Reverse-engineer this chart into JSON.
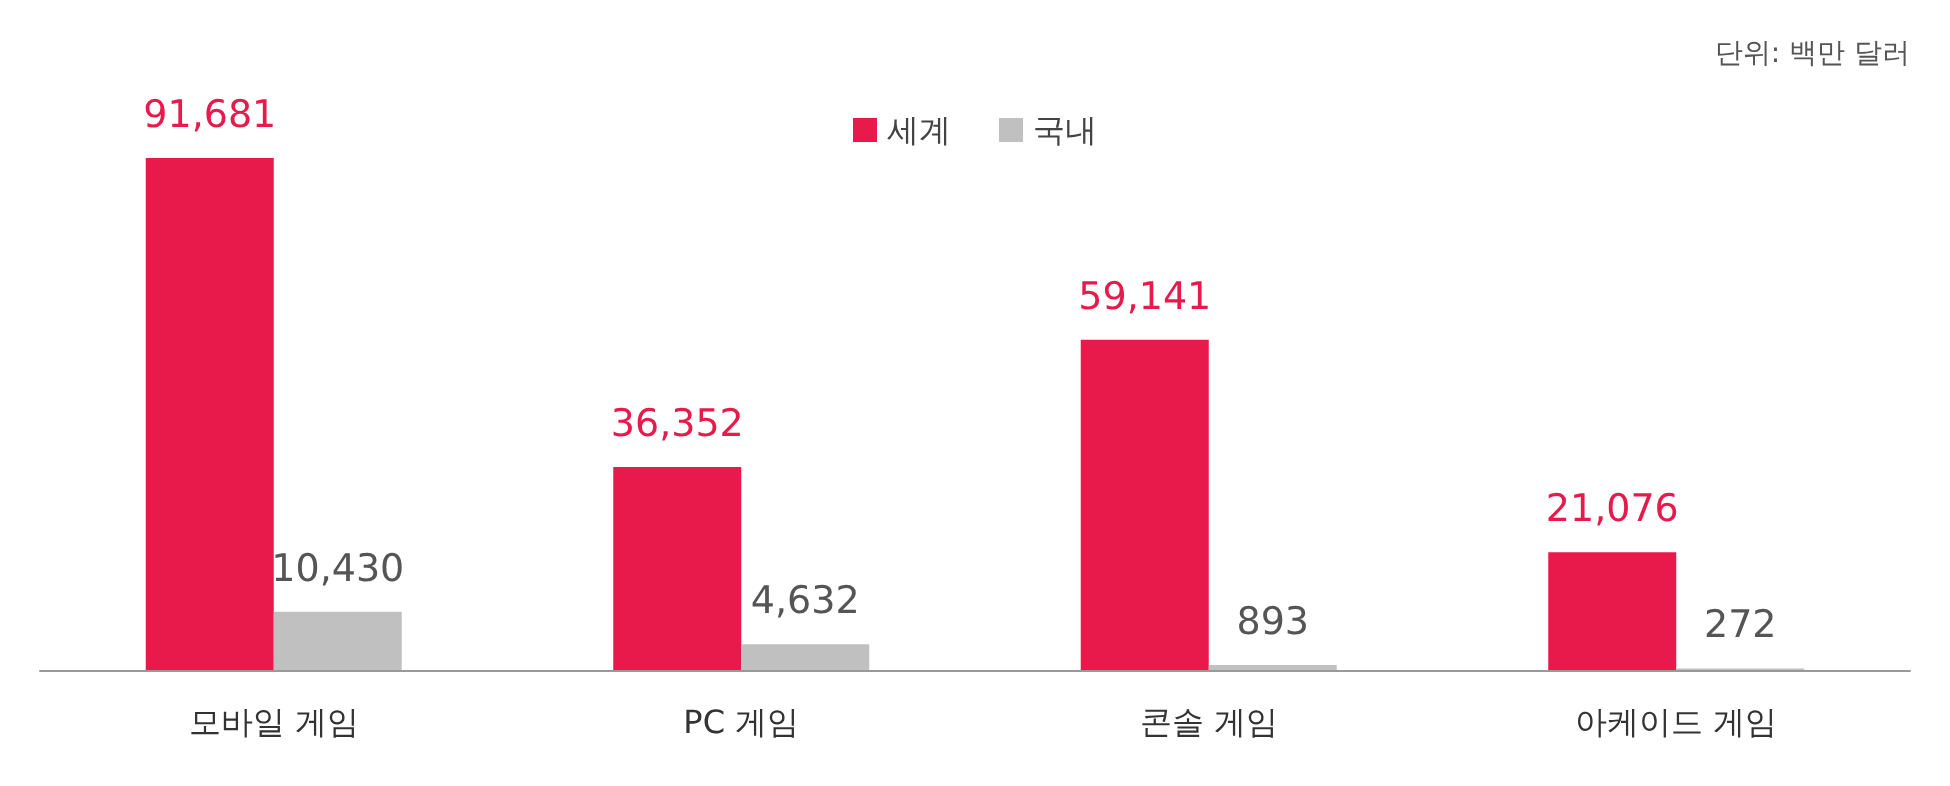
{
  "chart_data": {
    "type": "bar",
    "categories": [
      "모바일 게임",
      "PC 게임",
      "콘솔 게임",
      "아케이드 게임"
    ],
    "series": [
      {
        "name": "세계",
        "color": "#e8194b",
        "values": [
          91681,
          36352,
          59141,
          21076
        ],
        "value_labels": [
          "91,681",
          "36,352",
          "59,141",
          "21,076"
        ]
      },
      {
        "name": "국내",
        "color": "#c0c0c0",
        "values": [
          10430,
          4632,
          893,
          272
        ],
        "value_labels": [
          "10,430",
          "4,632",
          "893",
          "272"
        ]
      }
    ],
    "legend": "top",
    "grid": false,
    "annotations": [
      "단위: 백만 달러"
    ]
  }
}
